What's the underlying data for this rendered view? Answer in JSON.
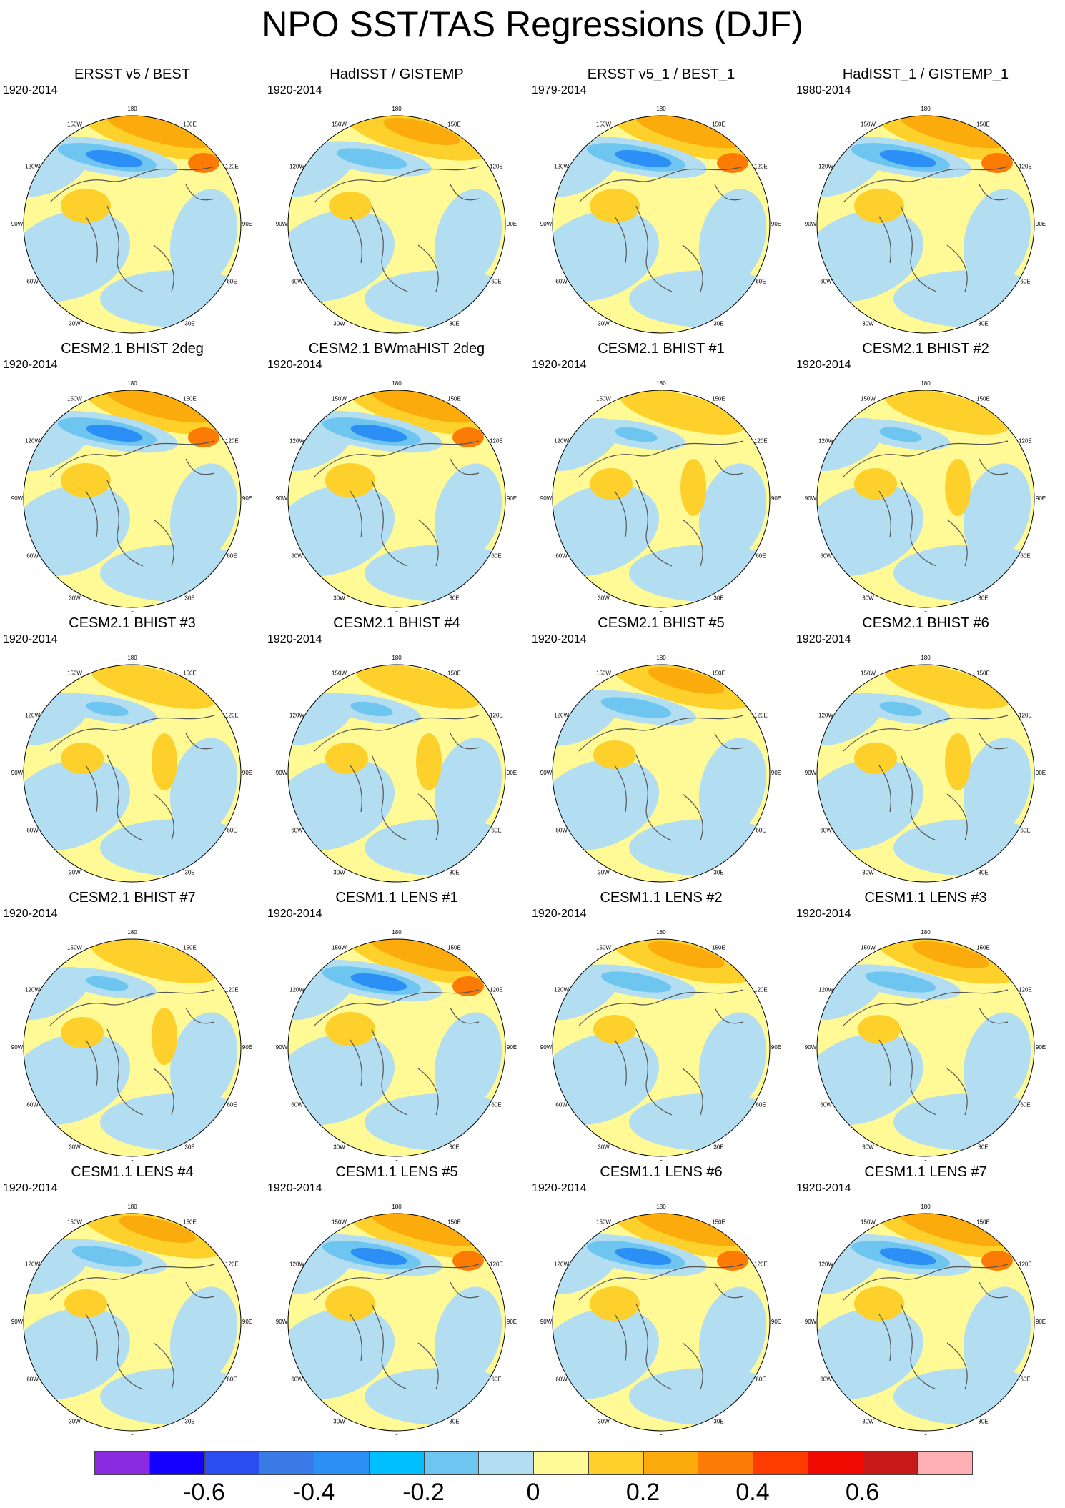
{
  "title": "NPO SST/TAS Regressions (DJF)",
  "longitude_labels": [
    "180",
    "150E",
    "120E",
    "90E",
    "60E",
    "30E",
    "0",
    "30W",
    "60W",
    "90W",
    "120W",
    "150W"
  ],
  "panels": [
    {
      "title": "ERSST v5 / BEST",
      "period": "1920-2014",
      "pattern": "strong"
    },
    {
      "title": "HadISST / GISTEMP",
      "period": "1920-2014",
      "pattern": "moderate"
    },
    {
      "title": "ERSST v5_1 / BEST_1",
      "period": "1979-2014",
      "pattern": "strong"
    },
    {
      "title": "HadISST_1 / GISTEMP_1",
      "period": "1980-2014",
      "pattern": "strong"
    },
    {
      "title": "CESM2.1 BHIST 2deg",
      "period": "1920-2014",
      "pattern": "strong"
    },
    {
      "title": "CESM2.1 BWmaHIST 2deg",
      "period": "1920-2014",
      "pattern": "strong"
    },
    {
      "title": "CESM2.1 BHIST #1",
      "period": "1920-2014",
      "pattern": "weak"
    },
    {
      "title": "CESM2.1 BHIST #2",
      "period": "1920-2014",
      "pattern": "weak"
    },
    {
      "title": "CESM2.1 BHIST #3",
      "period": "1920-2014",
      "pattern": "weak"
    },
    {
      "title": "CESM2.1 BHIST #4",
      "period": "1920-2014",
      "pattern": "weak"
    },
    {
      "title": "CESM2.1 BHIST #5",
      "period": "1920-2014",
      "pattern": "moderate"
    },
    {
      "title": "CESM2.1 BHIST #6",
      "period": "1920-2014",
      "pattern": "weak"
    },
    {
      "title": "CESM2.1 BHIST #7",
      "period": "1920-2014",
      "pattern": "weak"
    },
    {
      "title": "CESM1.1 LENS #1",
      "period": "1920-2014",
      "pattern": "strong"
    },
    {
      "title": "CESM1.1 LENS #2",
      "period": "1920-2014",
      "pattern": "moderate"
    },
    {
      "title": "CESM1.1 LENS #3",
      "period": "1920-2014",
      "pattern": "moderate"
    },
    {
      "title": "CESM1.1 LENS #4",
      "period": "1920-2014",
      "pattern": "moderate"
    },
    {
      "title": "CESM1.1 LENS #5",
      "period": "1920-2014",
      "pattern": "strong"
    },
    {
      "title": "CESM1.1 LENS #6",
      "period": "1920-2014",
      "pattern": "strong"
    },
    {
      "title": "CESM1.1 LENS #7",
      "period": "1920-2014",
      "pattern": "strong"
    }
  ],
  "colorbar": {
    "colors": [
      "#8a2be2",
      "#1400ff",
      "#2a4df0",
      "#3a7ae6",
      "#2b8ff5",
      "#00bfff",
      "#6ec6f0",
      "#b3def2",
      "#fffa96",
      "#fdd02b",
      "#fbac0c",
      "#fb7b04",
      "#fd3c00",
      "#ee0a00",
      "#c8191a",
      "#ffb0b4"
    ],
    "labels": [
      "-0.6",
      "-0.4",
      "-0.2",
      "0",
      "0.2",
      "0.4",
      "0.6"
    ],
    "label_values": [
      -0.6,
      -0.4,
      -0.2,
      0,
      0.2,
      0.4,
      0.6
    ],
    "bounds": [
      -0.8,
      0.8
    ]
  },
  "map_colors": {
    "neutral_warm": "#fffa96",
    "neutral_cool": "#b3def2",
    "cool": "#6ec6f0",
    "cold": "#2b8ff5",
    "very_cold": "#3a7ae6",
    "warm": "#fdd02b",
    "hot": "#fbac0c",
    "very_hot": "#fb7b04",
    "extreme": "#ee0a00",
    "coast": "#555555"
  }
}
